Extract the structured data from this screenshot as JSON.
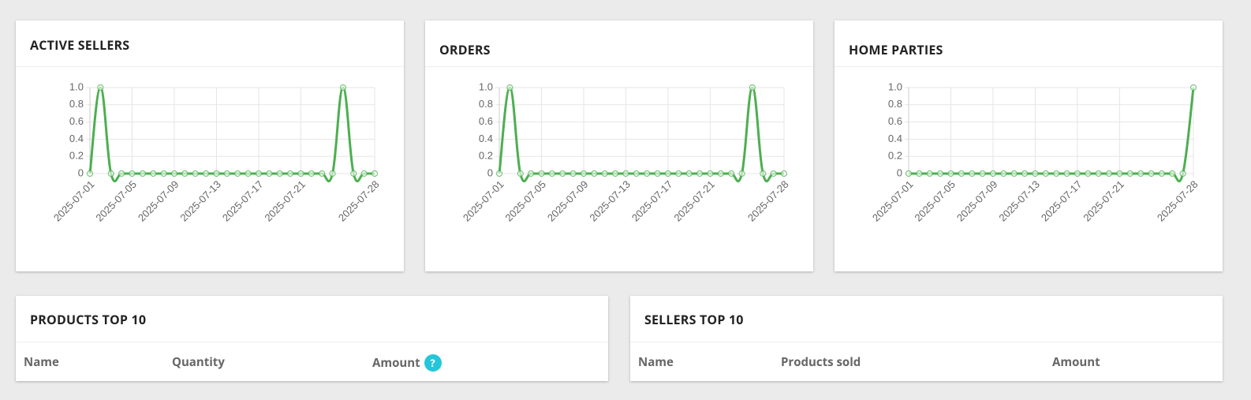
{
  "chart_data": [
    {
      "type": "line",
      "title": "ACTIVE SELLERS",
      "x": [
        "2025-07-01",
        "2025-07-02",
        "2025-07-03",
        "2025-07-04",
        "2025-07-05",
        "2025-07-06",
        "2025-07-07",
        "2025-07-08",
        "2025-07-09",
        "2025-07-10",
        "2025-07-11",
        "2025-07-12",
        "2025-07-13",
        "2025-07-14",
        "2025-07-15",
        "2025-07-16",
        "2025-07-17",
        "2025-07-18",
        "2025-07-19",
        "2025-07-20",
        "2025-07-21",
        "2025-07-22",
        "2025-07-23",
        "2025-07-24",
        "2025-07-25",
        "2025-07-26",
        "2025-07-27",
        "2025-07-28"
      ],
      "xticks": [
        "2025-07-01",
        "2025-07-05",
        "2025-07-09",
        "2025-07-13",
        "2025-07-17",
        "2025-07-21",
        "2025-07-28"
      ],
      "series": [
        {
          "color": "#4caf50",
          "values": [
            0,
            1,
            0,
            0,
            0,
            0,
            0,
            0,
            0,
            0,
            0,
            0,
            0,
            0,
            0,
            0,
            0,
            0,
            0,
            0,
            0,
            0,
            0,
            0,
            1,
            0,
            0,
            0
          ]
        }
      ],
      "ylim": [
        0,
        1
      ],
      "yticks": [
        0,
        0.2,
        0.4,
        0.6,
        0.8,
        {
          "value": 1,
          "label": "1.0"
        }
      ],
      "grid": true
    },
    {
      "type": "line",
      "title": "ORDERS",
      "x": [
        "2025-07-01",
        "2025-07-02",
        "2025-07-03",
        "2025-07-04",
        "2025-07-05",
        "2025-07-06",
        "2025-07-07",
        "2025-07-08",
        "2025-07-09",
        "2025-07-10",
        "2025-07-11",
        "2025-07-12",
        "2025-07-13",
        "2025-07-14",
        "2025-07-15",
        "2025-07-16",
        "2025-07-17",
        "2025-07-18",
        "2025-07-19",
        "2025-07-20",
        "2025-07-21",
        "2025-07-22",
        "2025-07-23",
        "2025-07-24",
        "2025-07-25",
        "2025-07-26",
        "2025-07-27",
        "2025-07-28"
      ],
      "xticks": [
        "2025-07-01",
        "2025-07-05",
        "2025-07-09",
        "2025-07-13",
        "2025-07-17",
        "2025-07-21",
        "2025-07-28"
      ],
      "series": [
        {
          "color": "#4caf50",
          "values": [
            0,
            1,
            0,
            0,
            0,
            0,
            0,
            0,
            0,
            0,
            0,
            0,
            0,
            0,
            0,
            0,
            0,
            0,
            0,
            0,
            0,
            0,
            0,
            0,
            1,
            0,
            0,
            0
          ]
        }
      ],
      "ylim": [
        0,
        1
      ],
      "yticks": [
        0,
        0.2,
        0.4,
        0.6,
        0.8,
        {
          "value": 1,
          "label": "1.0"
        }
      ],
      "grid": true
    },
    {
      "type": "line",
      "title": "HOME PARTIES",
      "x": [
        "2025-07-01",
        "2025-07-02",
        "2025-07-03",
        "2025-07-04",
        "2025-07-05",
        "2025-07-06",
        "2025-07-07",
        "2025-07-08",
        "2025-07-09",
        "2025-07-10",
        "2025-07-11",
        "2025-07-12",
        "2025-07-13",
        "2025-07-14",
        "2025-07-15",
        "2025-07-16",
        "2025-07-17",
        "2025-07-18",
        "2025-07-19",
        "2025-07-20",
        "2025-07-21",
        "2025-07-22",
        "2025-07-23",
        "2025-07-24",
        "2025-07-25",
        "2025-07-26",
        "2025-07-27",
        "2025-07-28"
      ],
      "xticks": [
        "2025-07-01",
        "2025-07-05",
        "2025-07-09",
        "2025-07-13",
        "2025-07-17",
        "2025-07-21",
        "2025-07-28"
      ],
      "series": [
        {
          "color": "#4caf50",
          "values": [
            0,
            0,
            0,
            0,
            0,
            0,
            0,
            0,
            0,
            0,
            0,
            0,
            0,
            0,
            0,
            0,
            0,
            0,
            0,
            0,
            0,
            0,
            0,
            0,
            0,
            0,
            0,
            1
          ]
        }
      ],
      "ylim": [
        0,
        1
      ],
      "yticks": [
        0,
        0.2,
        0.4,
        0.6,
        0.8,
        {
          "value": 1,
          "label": "1.0"
        }
      ],
      "grid": true
    }
  ],
  "tables": [
    {
      "title": "PRODUCTS TOP 10",
      "columns": [
        "Name",
        "Quantity",
        "Amount"
      ],
      "amount_hint": "?"
    },
    {
      "title": "SELLERS TOP 10",
      "columns": [
        "Name",
        "Products sold",
        "Amount"
      ]
    }
  ]
}
